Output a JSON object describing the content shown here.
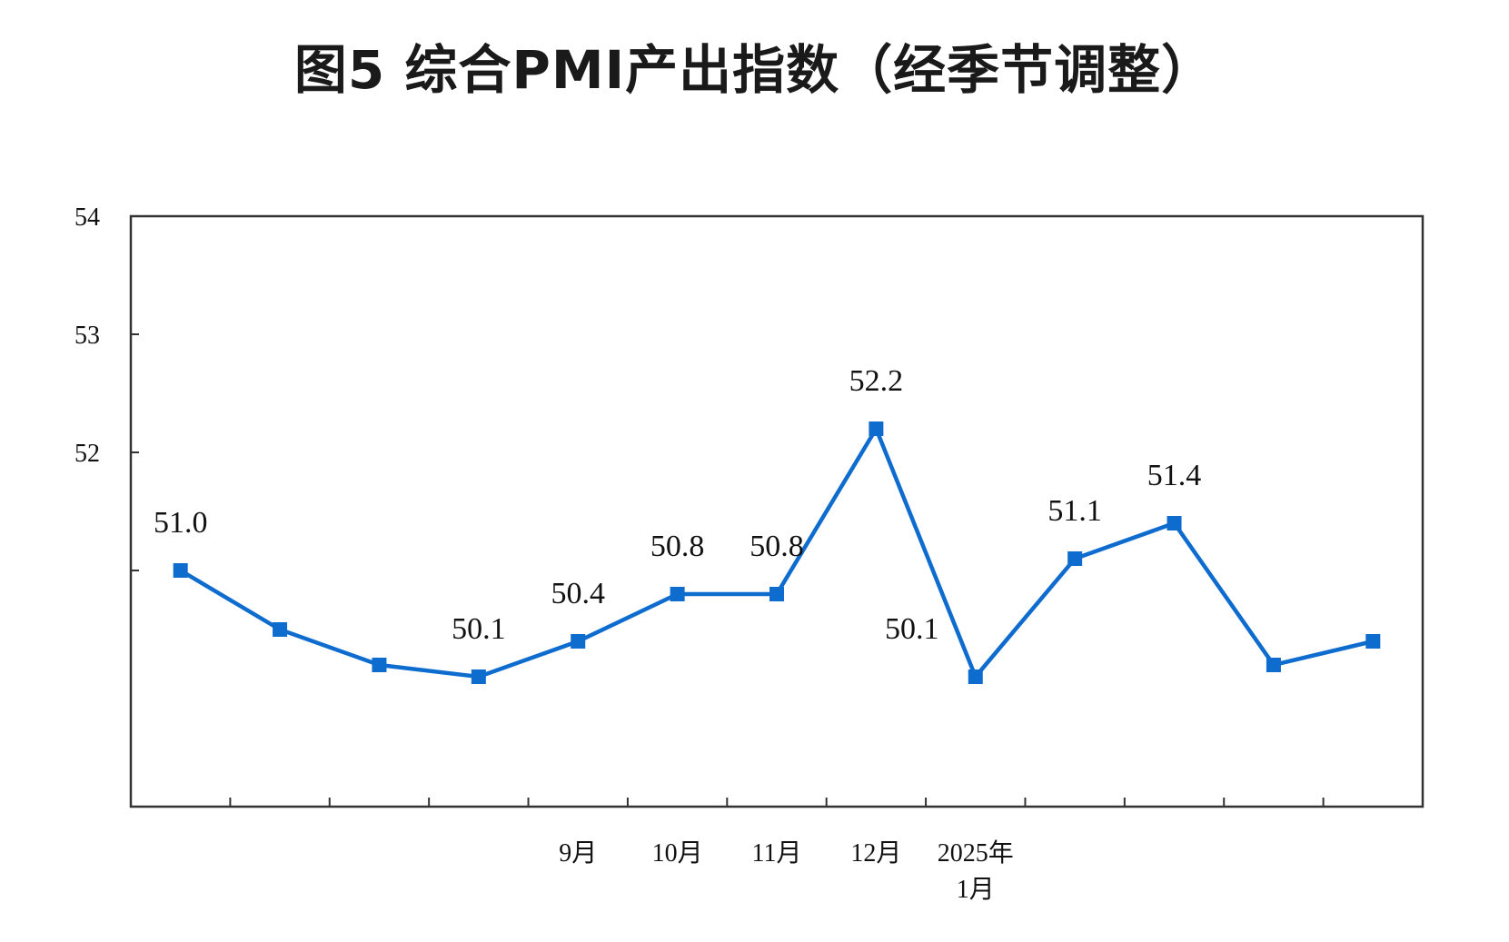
{
  "title": "图5  综合PMI产出指数（经季节调整）",
  "chart_data": {
    "type": "line",
    "title": "图5  综合PMI产出指数（经季节调整）",
    "xlabel": "",
    "ylabel": "",
    "ylim": [
      49,
      54
    ],
    "y_ticks": [
      {
        "value": 54,
        "label": "54"
      },
      {
        "value": 53,
        "label": "53"
      },
      {
        "value": 52,
        "label": "52"
      }
    ],
    "categories": [
      "",
      "",
      "",
      "",
      "9月",
      "10月",
      "11月",
      "12月",
      "2025年\n1月",
      "",
      "",
      "",
      ""
    ],
    "series": [
      {
        "color": "#0f6ccf",
        "values": [
          51.0,
          50.5,
          50.2,
          50.1,
          50.4,
          50.8,
          50.8,
          52.2,
          50.1,
          51.1,
          51.4,
          50.2,
          50.4
        ],
        "data_labels": [
          "51.0",
          "",
          "",
          "50.1",
          "50.4",
          "50.8",
          "50.8",
          "52.2",
          "50.1",
          "51.1",
          "51.4",
          "",
          ""
        ]
      }
    ],
    "grid": false,
    "legend": "none"
  }
}
